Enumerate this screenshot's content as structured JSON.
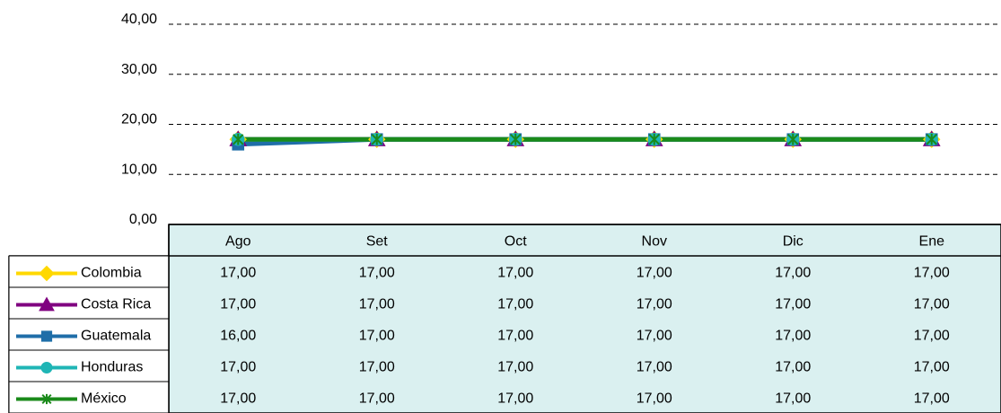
{
  "chart_data": {
    "type": "line",
    "categories": [
      "Ago",
      "Set",
      "Oct",
      "Nov",
      "Dic",
      "Ene"
    ],
    "series": [
      {
        "name": "Colombia",
        "color": "#ffd800",
        "marker": "diamond",
        "values": [
          17,
          17,
          17,
          17,
          17,
          17
        ],
        "value_labels": [
          "17,00",
          "17,00",
          "17,00",
          "17,00",
          "17,00",
          "17,00"
        ]
      },
      {
        "name": "Costa Rica",
        "color": "#800080",
        "marker": "triangle",
        "values": [
          17,
          17,
          17,
          17,
          17,
          17
        ],
        "value_labels": [
          "17,00",
          "17,00",
          "17,00",
          "17,00",
          "17,00",
          "17,00"
        ]
      },
      {
        "name": "Guatemala",
        "color": "#1f6ea8",
        "marker": "square",
        "values": [
          16,
          17,
          17,
          17,
          17,
          17
        ],
        "value_labels": [
          "16,00",
          "17,00",
          "17,00",
          "17,00",
          "17,00",
          "17,00"
        ]
      },
      {
        "name": "Honduras",
        "color": "#1fb5b5",
        "marker": "circle",
        "values": [
          17,
          17,
          17,
          17,
          17,
          17
        ],
        "value_labels": [
          "17,00",
          "17,00",
          "17,00",
          "17,00",
          "17,00",
          "17,00"
        ]
      },
      {
        "name": "México",
        "color": "#1a8a1a",
        "marker": "star",
        "values": [
          17,
          17,
          17,
          17,
          17,
          17
        ],
        "value_labels": [
          "17,00",
          "17,00",
          "17,00",
          "17,00",
          "17,00",
          "17,00"
        ]
      }
    ],
    "ylim": [
      0,
      40
    ],
    "yticks": [
      {
        "value": 0,
        "label": "0,00"
      },
      {
        "value": 10,
        "label": "10,00"
      },
      {
        "value": 20,
        "label": "20,00"
      },
      {
        "value": 30,
        "label": "30,00"
      },
      {
        "value": 40,
        "label": "40,00"
      }
    ],
    "grid": true
  }
}
